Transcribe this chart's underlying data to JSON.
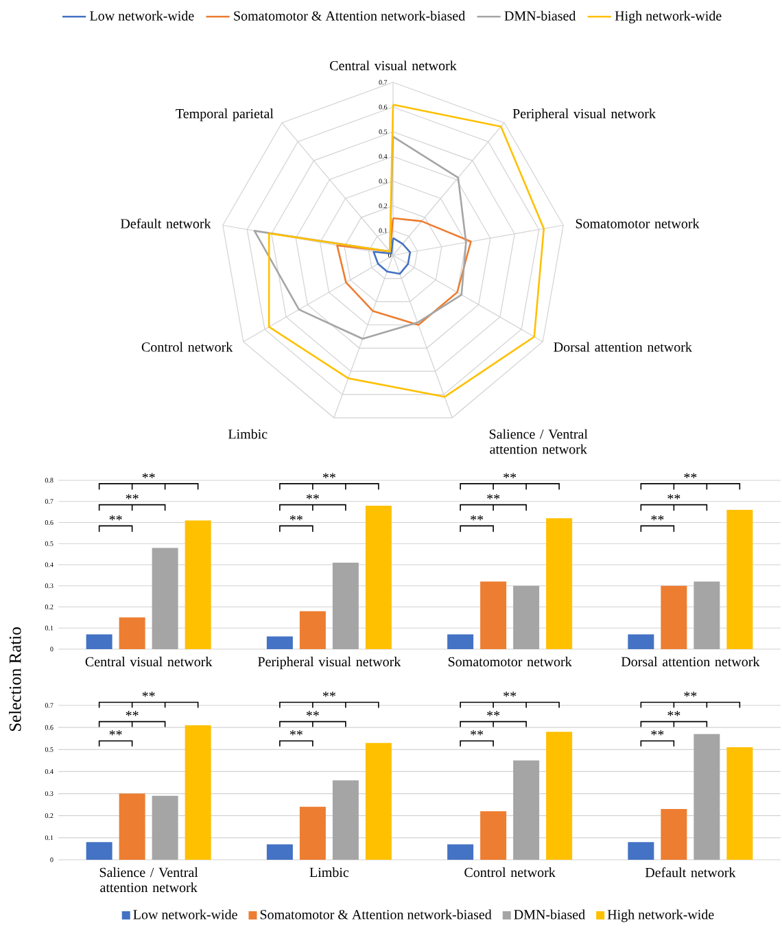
{
  "chart_data": [
    {
      "type": "radar",
      "categories": [
        "Central visual network",
        "Peripheral visual network",
        "Somatomotor network",
        "Dorsal attention network",
        "Salience / Ventral attention network",
        "Limbic",
        "Control network",
        "Default network",
        "Temporal parietal"
      ],
      "ylim": [
        0,
        0.7
      ],
      "yticks": [
        0,
        0.1,
        0.2,
        0.3,
        0.4,
        0.5,
        0.6,
        0.7
      ],
      "grid": true,
      "legend": "top",
      "series": [
        {
          "name": "Low network-wide",
          "color": "#4472c4",
          "values": [
            0.07,
            0.06,
            0.07,
            0.07,
            0.08,
            0.07,
            0.07,
            0.08,
            0.01
          ]
        },
        {
          "name": "Somatomotor & Attention network-biased",
          "color": "#ed7d31",
          "values": [
            0.15,
            0.18,
            0.32,
            0.3,
            0.3,
            0.24,
            0.22,
            0.23,
            0.02
          ]
        },
        {
          "name": "DMN-biased",
          "color": "#a5a5a5",
          "values": [
            0.48,
            0.41,
            0.3,
            0.32,
            0.29,
            0.36,
            0.44,
            0.57,
            0.02
          ]
        },
        {
          "name": "High network-wide",
          "color": "#ffc000",
          "values": [
            0.61,
            0.68,
            0.62,
            0.66,
            0.61,
            0.53,
            0.58,
            0.51,
            0.02
          ]
        }
      ]
    },
    {
      "type": "bar",
      "categories": [
        "Central visual network",
        "Peripheral visual network",
        "Somatomotor network",
        "Dorsal attention network"
      ],
      "ylim": [
        0,
        0.8
      ],
      "yticks": [
        0,
        0.1,
        0.2,
        0.3,
        0.4,
        0.5,
        0.6,
        0.7,
        0.8
      ],
      "grid": "y",
      "ylabel": "Selection Ratio",
      "annotations": [
        "**",
        "**",
        "**",
        "**",
        "**",
        "**",
        "**",
        "**",
        "**",
        "**",
        "**",
        "**"
      ],
      "series": [
        {
          "color": "#4472c4",
          "values": [
            0.07,
            0.06,
            0.07,
            0.07
          ]
        },
        {
          "color": "#ed7d31",
          "values": [
            0.15,
            0.18,
            0.32,
            0.3
          ]
        },
        {
          "color": "#a5a5a5",
          "values": [
            0.48,
            0.41,
            0.3,
            0.32
          ]
        },
        {
          "color": "#ffc000",
          "values": [
            0.61,
            0.68,
            0.62,
            0.66
          ]
        }
      ]
    },
    {
      "type": "bar",
      "categories": [
        "Salience / Ventral attention network",
        "Limbic",
        "Control network",
        "Default network"
      ],
      "ylim": [
        0,
        0.7
      ],
      "yticks": [
        0,
        0.1,
        0.2,
        0.3,
        0.4,
        0.5,
        0.6,
        0.7
      ],
      "grid": "y",
      "legend": "bottom",
      "annotations": [
        "**",
        "**",
        "**",
        "**",
        "**",
        "**",
        "**",
        "**",
        "**",
        "**",
        "**",
        "**"
      ],
      "series": [
        {
          "name": "Low network-wide",
          "color": "#4472c4",
          "values": [
            0.08,
            0.07,
            0.07,
            0.08
          ]
        },
        {
          "name": "Somatomotor & Attention network-biased",
          "color": "#ed7d31",
          "values": [
            0.3,
            0.24,
            0.22,
            0.23
          ]
        },
        {
          "name": "DMN-biased",
          "color": "#a5a5a5",
          "values": [
            0.29,
            0.36,
            0.45,
            0.57
          ]
        },
        {
          "name": "High network-wide",
          "color": "#ffc000",
          "values": [
            0.61,
            0.53,
            0.58,
            0.51
          ]
        }
      ]
    }
  ]
}
